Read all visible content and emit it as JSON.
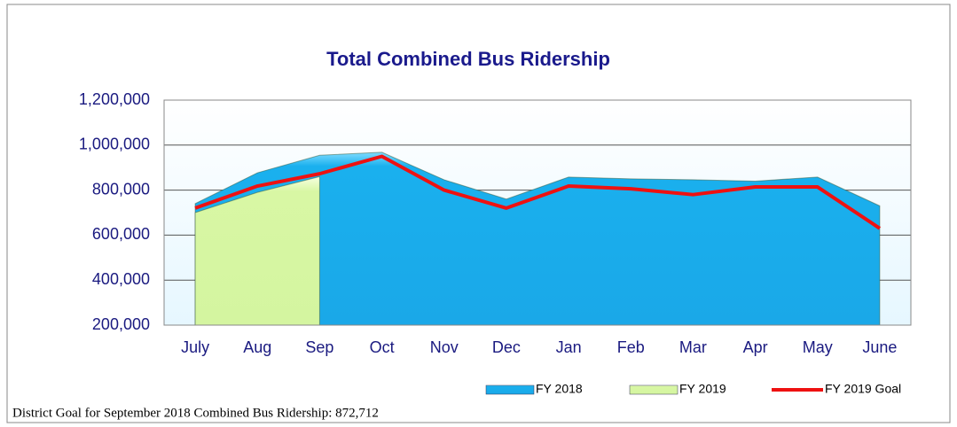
{
  "chart_data": {
    "type": "area",
    "title": "Total Combined Bus Ridership",
    "categories": [
      "July",
      "Aug",
      "Sep",
      "Oct",
      "Nov",
      "Dec",
      "Jan",
      "Feb",
      "Mar",
      "Apr",
      "May",
      "June"
    ],
    "series": [
      {
        "name": "FY 2018",
        "color": "#1ab0ee",
        "kind": "area",
        "values": [
          740000,
          877000,
          955000,
          968000,
          846000,
          760000,
          858000,
          850000,
          846000,
          840000,
          858000,
          730000
        ]
      },
      {
        "name": "FY 2019",
        "color": "#d8f7a4",
        "kind": "area",
        "values": [
          700000,
          790000,
          860000,
          null,
          null,
          null,
          null,
          null,
          null,
          null,
          null,
          null
        ]
      },
      {
        "name": "FY 2019 Goal",
        "color": "#ee1111",
        "kind": "line",
        "values": [
          720000,
          818000,
          872712,
          950000,
          800000,
          720000,
          818000,
          806000,
          780000,
          814000,
          814000,
          630000
        ]
      }
    ],
    "ylim": [
      200000,
      1200000
    ],
    "yticks": [
      {
        "value": 200000,
        "label": "200,000"
      },
      {
        "value": 400000,
        "label": "400,000"
      },
      {
        "value": 600000,
        "label": "600,000"
      },
      {
        "value": 800000,
        "label": "800,000"
      },
      {
        "value": 1000000,
        "label": "1,000,000"
      },
      {
        "value": 1200000,
        "label": "1,200,000"
      }
    ],
    "grid": true,
    "legend": "bottom",
    "footnote": "District Goal for September 2018 Combined Bus Ridership:  872,712"
  }
}
